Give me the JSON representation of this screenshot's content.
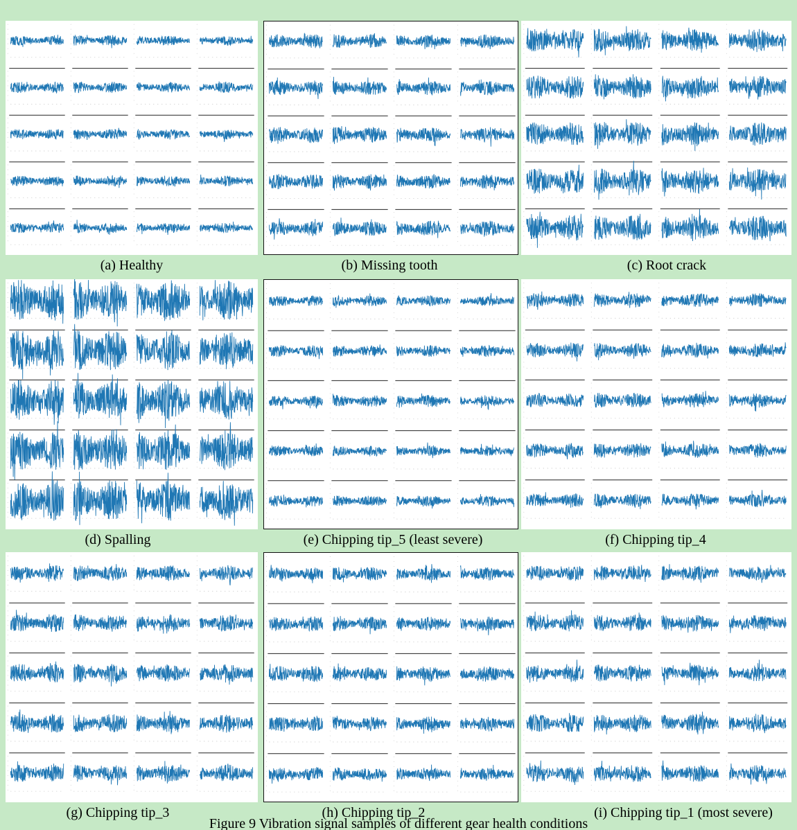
{
  "figure": {
    "caption": "Figure 9 Vibration signal samples of different gear health conditions"
  },
  "colors": {
    "background": "#c6e9c6",
    "signal": "#1f77b4",
    "panel": "#ffffff"
  },
  "chart_data": [
    {
      "type": "line",
      "label": "(a) Healthy",
      "grid_rows": 5,
      "grid_cols": 4,
      "relative_amplitude": [
        0.22,
        0.24,
        0.23,
        0.23,
        0.22
      ]
    },
    {
      "type": "line",
      "label": "(b) Missing tooth",
      "grid_rows": 5,
      "grid_cols": 4,
      "relative_amplitude": [
        0.3,
        0.32,
        0.34,
        0.33,
        0.33
      ]
    },
    {
      "type": "line",
      "label": "(c) Root crack",
      "grid_rows": 5,
      "grid_cols": 4,
      "relative_amplitude": [
        0.5,
        0.52,
        0.52,
        0.56,
        0.56
      ]
    },
    {
      "type": "line",
      "label": "(d) Spalling",
      "grid_rows": 5,
      "grid_cols": 4,
      "relative_amplitude": [
        0.82,
        0.82,
        0.82,
        0.82,
        0.82
      ]
    },
    {
      "type": "line",
      "label": "(e) Chipping tip_5 (least severe)",
      "grid_rows": 5,
      "grid_cols": 4,
      "relative_amplitude": [
        0.22,
        0.24,
        0.24,
        0.22,
        0.22
      ]
    },
    {
      "type": "line",
      "label": "(f) Chipping tip_4",
      "grid_rows": 5,
      "grid_cols": 4,
      "relative_amplitude": [
        0.28,
        0.3,
        0.3,
        0.3,
        0.28
      ]
    },
    {
      "type": "line",
      "label": "(g) Chipping tip_3",
      "grid_rows": 5,
      "grid_cols": 4,
      "relative_amplitude": [
        0.32,
        0.35,
        0.38,
        0.38,
        0.35
      ]
    },
    {
      "type": "line",
      "label": "(h) Chipping tip_2",
      "grid_rows": 5,
      "grid_cols": 4,
      "relative_amplitude": [
        0.28,
        0.3,
        0.32,
        0.3,
        0.28
      ]
    },
    {
      "type": "line",
      "label": "(i) Chipping tip_1 (most severe)",
      "grid_rows": 5,
      "grid_cols": 4,
      "relative_amplitude": [
        0.32,
        0.35,
        0.35,
        0.38,
        0.35
      ]
    }
  ]
}
